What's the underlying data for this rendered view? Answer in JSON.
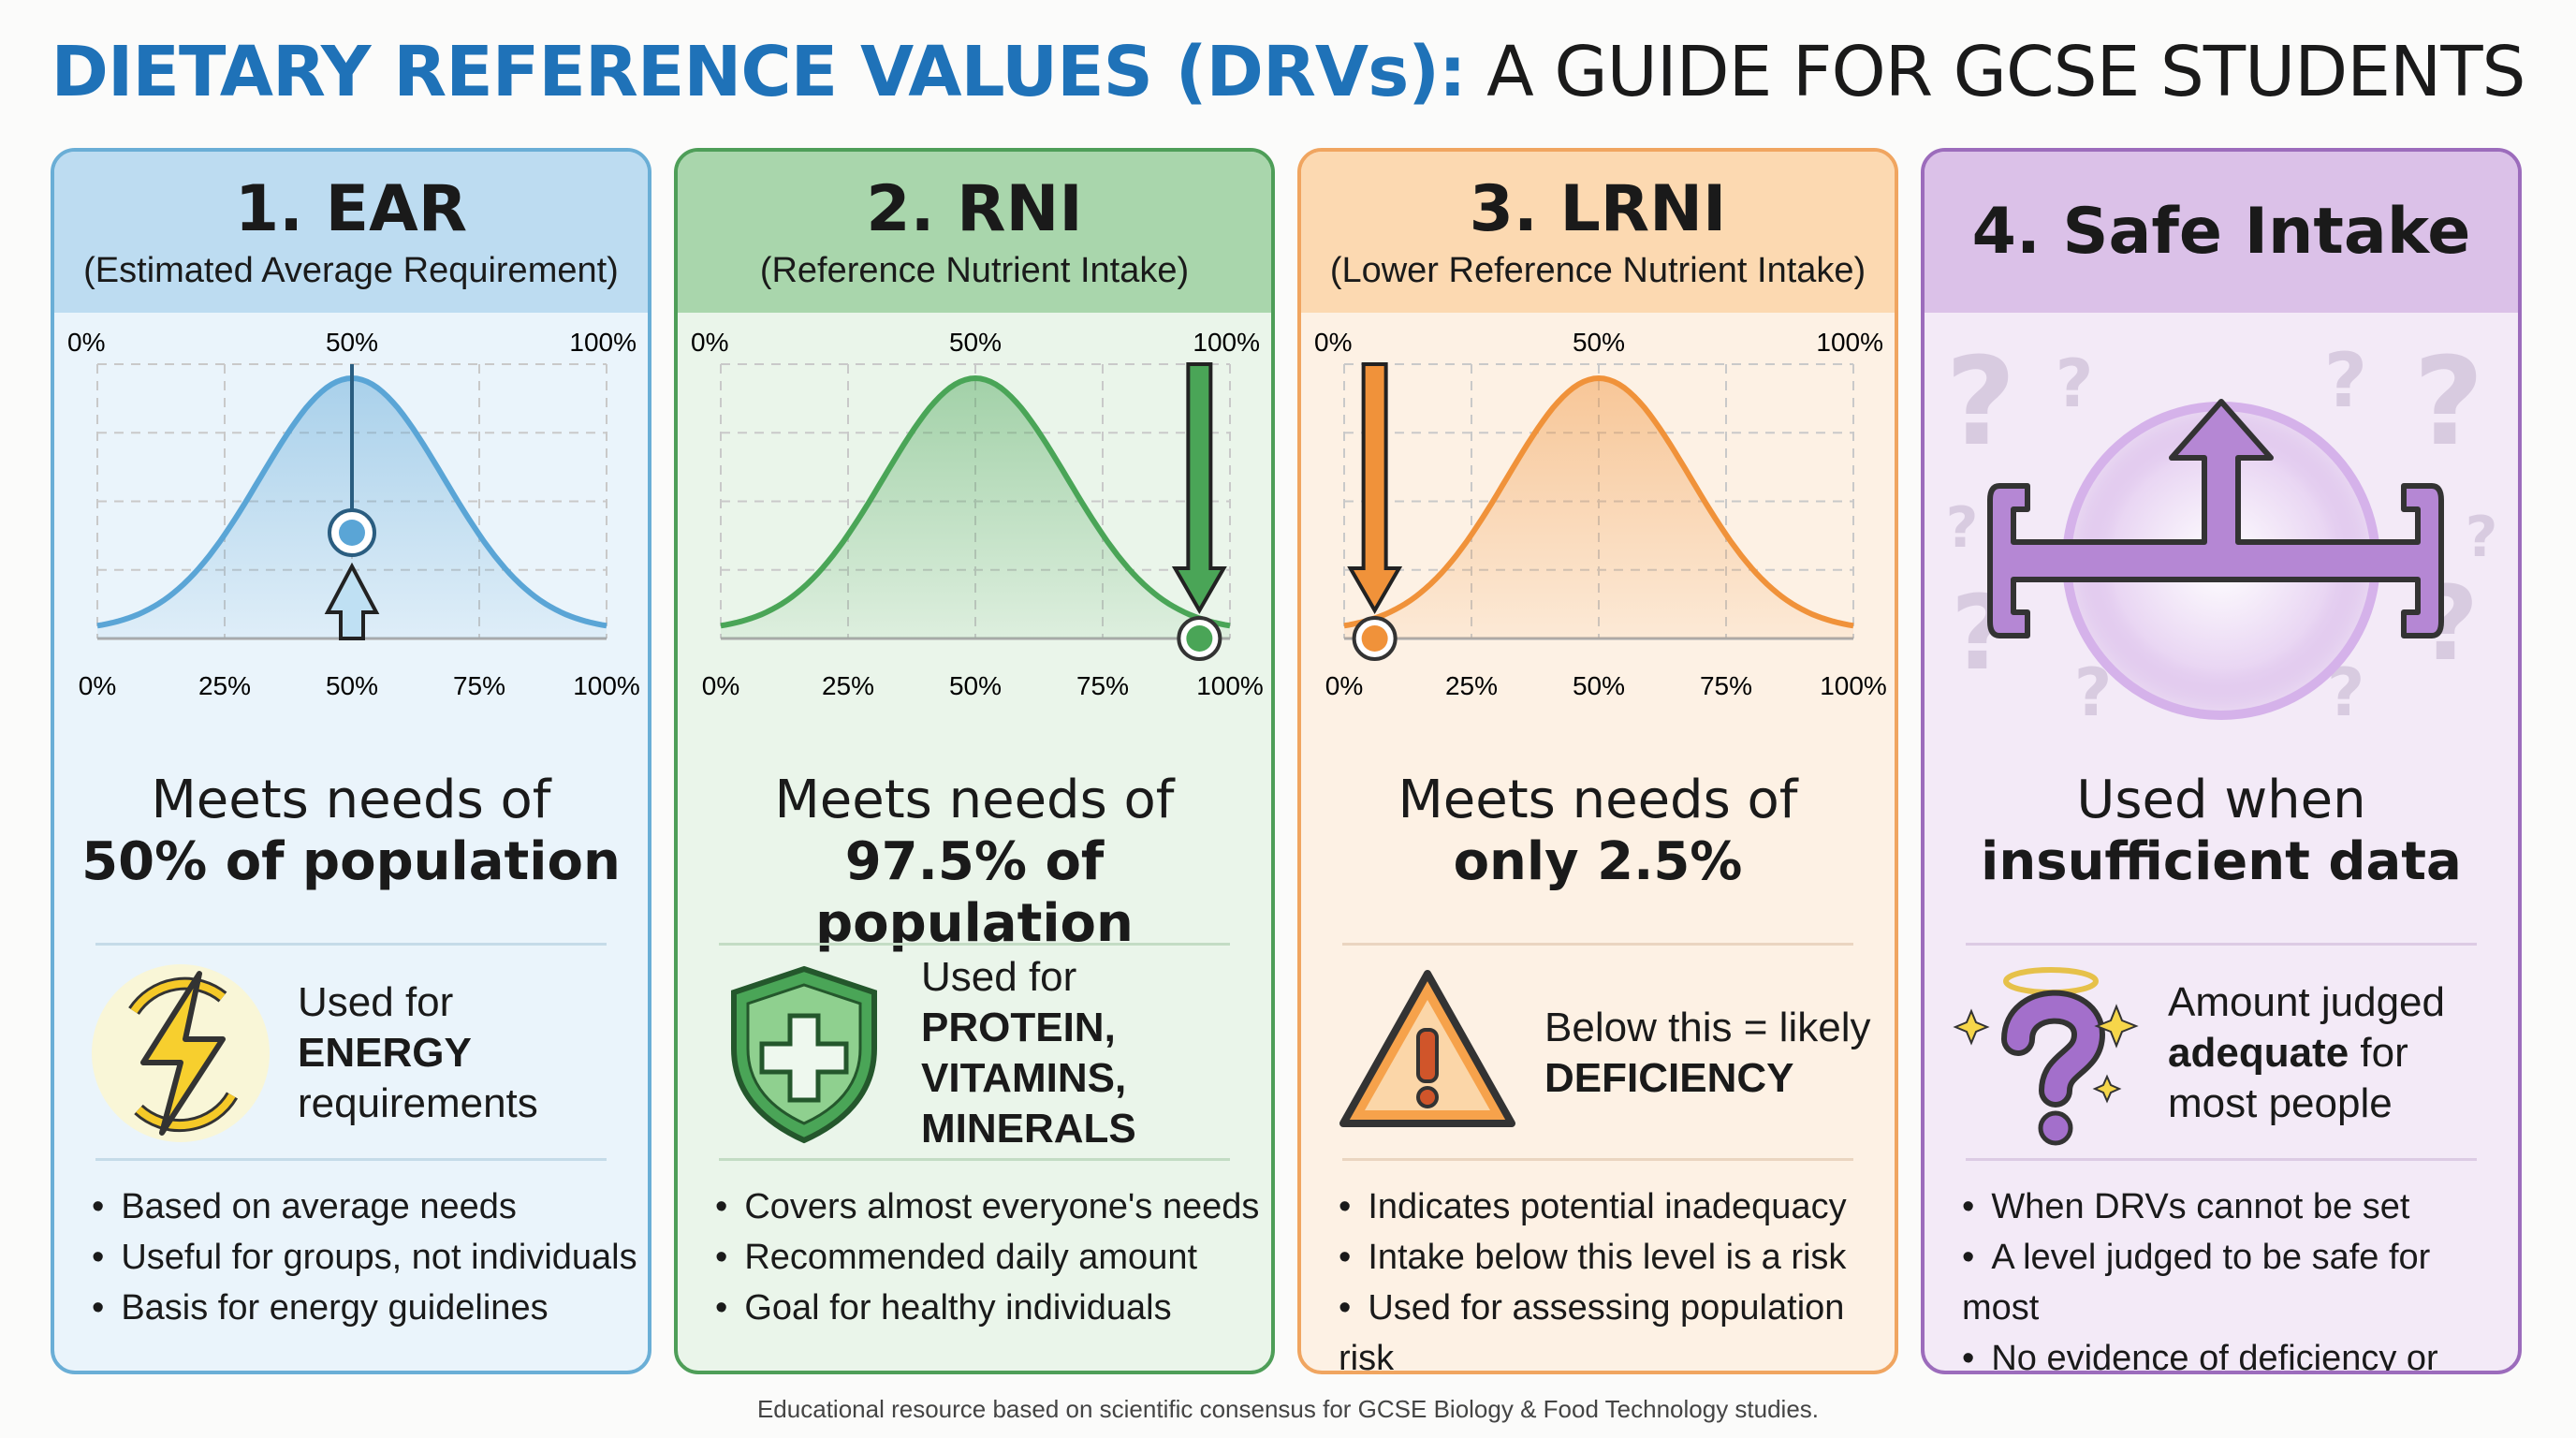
{
  "title": {
    "highlight": "DIETARY REFERENCE VALUES (DRVs):",
    "rest": " A GUIDE FOR GCSE STUDENTS",
    "color": "#1f72b8"
  },
  "footer": "Educational resource based on scientific consensus for GCSE Biology & Food Technology studies.",
  "cards": [
    {
      "title": "1. EAR",
      "subtitle": "(Estimated Average Requirement)",
      "colors": {
        "border": "#6aaed6",
        "header": "#bddcf1",
        "body": "#eaf4fb",
        "accent": "#5aa5d6",
        "divider": "#c5dbe8"
      },
      "top_ticks": [
        "0%",
        "50%",
        "100%"
      ],
      "bottom_ticks": [
        "0%",
        "25%",
        "50%",
        "75%",
        "100%"
      ],
      "marker_percent": 50,
      "marker_style": "up-arrow-center",
      "main_line1": "Meets needs of",
      "main_line2": "50% of population",
      "icon": "lightning-bolt-icon",
      "icon_text": {
        "pre": "Used for ",
        "bold": "ENERGY",
        "post": " requirements"
      },
      "bullets": [
        "Based on average needs",
        "Useful for groups, not individuals",
        "Basis for energy guidelines"
      ]
    },
    {
      "title": "2. RNI",
      "subtitle": "(Reference Nutrient Intake)",
      "colors": {
        "border": "#4e9e58",
        "header": "#a9d6ac",
        "body": "#eaf5ea",
        "accent": "#4aa557",
        "divider": "#c3dcc4"
      },
      "top_ticks": [
        "0%",
        "50%",
        "100%"
      ],
      "bottom_ticks": [
        "0%",
        "25%",
        "50%",
        "75%",
        "100%"
      ],
      "marker_percent": 97.5,
      "marker_style": "down-arrow",
      "main_line1": "Meets needs of",
      "main_line2": "97.5% of population",
      "icon": "shield-cross-icon",
      "icon_text": {
        "pre": "Used for ",
        "bold": "PROTEIN, VITAMINS, MINERALS",
        "post": ""
      },
      "bullets": [
        "Covers almost everyone's needs",
        "Recommended daily amount",
        "Goal for healthy individuals"
      ]
    },
    {
      "title": "3. LRNI",
      "subtitle": "(Lower Reference Nutrient Intake)",
      "colors": {
        "border": "#f0a560",
        "header": "#fcd9b1",
        "body": "#fdf1e4",
        "accent": "#f0923a",
        "divider": "#ead5c0"
      },
      "top_ticks": [
        "0%",
        "50%",
        "100%"
      ],
      "bottom_ticks": [
        "0%",
        "25%",
        "50%",
        "75%",
        "100%"
      ],
      "marker_percent": 2.5,
      "marker_style": "down-arrow",
      "main_line1": "Meets needs of",
      "main_line2": "only 2.5%",
      "icon": "warning-triangle-icon",
      "icon_text": {
        "pre": "Below this = likely ",
        "bold": "DEFICIENCY",
        "post": ""
      },
      "bullets": [
        "Indicates potential inadequacy",
        "Intake below this level is a risk",
        "Used for assessing population risk"
      ]
    },
    {
      "title": "4. Safe Intake",
      "subtitle": "",
      "colors": {
        "border": "#9c6cbc",
        "header": "#dbc1e8",
        "body": "#f3eaf7",
        "accent": "#a36fcb",
        "divider": "#dccbe4"
      },
      "graphic": "range-bracket-arrow-icon",
      "main_line1": "Used when",
      "main_line2": "insufficient data",
      "icon": "haloed-question-mark-icon",
      "icon_text": {
        "pre": "Amount judged ",
        "bold": "adequate",
        "post": " for most people"
      },
      "bullets": [
        "When DRVs cannot be set",
        "A level judged to be safe for most",
        "No evidence of deficiency or toxicity"
      ]
    }
  ]
}
